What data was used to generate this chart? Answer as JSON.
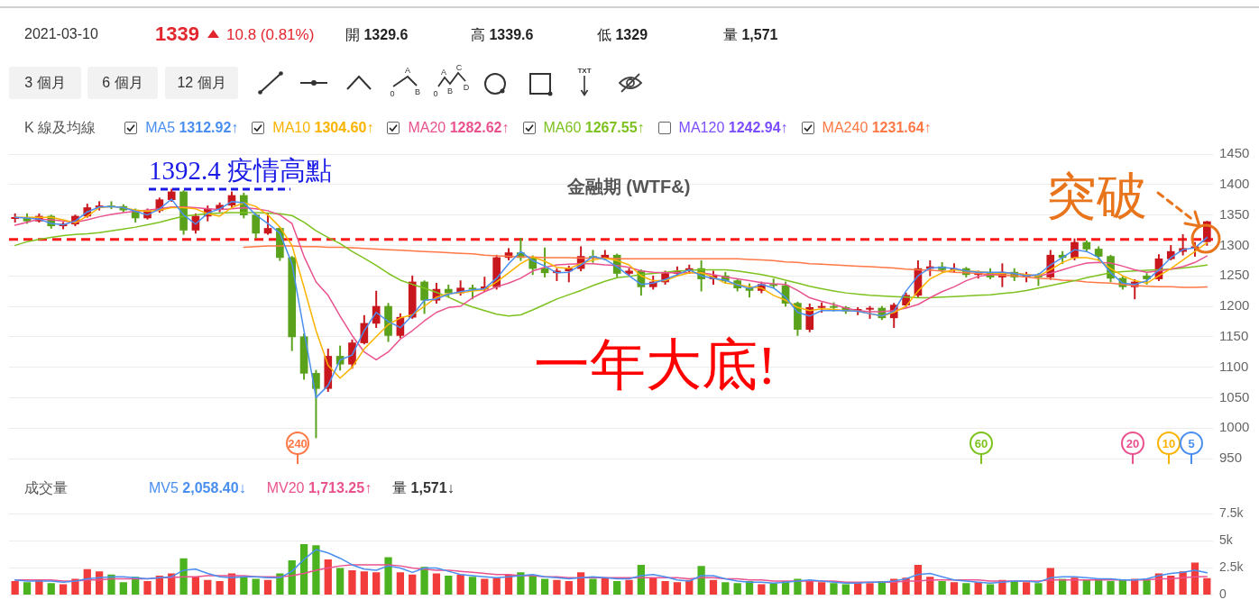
{
  "chart_data": [
    {
      "type": "candlestick",
      "title": "金融期 (WTF&)",
      "categories": [
        null,
        null,
        null,
        null,
        null,
        null,
        null,
        null,
        null,
        null,
        null,
        null,
        null,
        null,
        null,
        null,
        null,
        null,
        null,
        null,
        null,
        null,
        null,
        null,
        null,
        null,
        null,
        null,
        null,
        null,
        null,
        null,
        null,
        null,
        null,
        null,
        null,
        null,
        null,
        null,
        null,
        null,
        null,
        null,
        null,
        null,
        null,
        null,
        null,
        null,
        null,
        null,
        null,
        null,
        null,
        null,
        null,
        null,
        null,
        null,
        null,
        null,
        null,
        null,
        null,
        null,
        null,
        null,
        null,
        null,
        null,
        null,
        null,
        null,
        null,
        null,
        null,
        null,
        null,
        null,
        null,
        null,
        null,
        null,
        null,
        null,
        null,
        null,
        null,
        null,
        null,
        null,
        null,
        null,
        null,
        null,
        null,
        null,
        null,
        null
      ],
      "ohlc": [
        [
          1344,
          1352,
          1338,
          1346
        ],
        [
          1346,
          1352,
          1336,
          1340
        ],
        [
          1340,
          1352,
          1338,
          1348
        ],
        [
          1348,
          1350,
          1328,
          1332
        ],
        [
          1332,
          1338,
          1327,
          1335
        ],
        [
          1335,
          1350,
          1332,
          1348
        ],
        [
          1348,
          1368,
          1346,
          1362
        ],
        [
          1362,
          1372,
          1358,
          1365
        ],
        [
          1365,
          1372,
          1360,
          1364
        ],
        [
          1364,
          1367,
          1355,
          1358
        ],
        [
          1358,
          1360,
          1338,
          1345
        ],
        [
          1345,
          1360,
          1343,
          1357
        ],
        [
          1357,
          1378,
          1354,
          1375
        ],
        [
          1375,
          1392.4,
          1372,
          1388
        ],
        [
          1388,
          1390,
          1318,
          1325
        ],
        [
          1325,
          1352,
          1320,
          1348
        ],
        [
          1348,
          1365,
          1340,
          1360
        ],
        [
          1360,
          1370,
          1355,
          1366
        ],
        [
          1366,
          1388,
          1362,
          1382
        ],
        [
          1382,
          1386,
          1345,
          1350
        ],
        [
          1350,
          1352,
          1312,
          1320
        ],
        [
          1320,
          1352,
          1318,
          1328
        ],
        [
          1328,
          1330,
          1275,
          1280
        ],
        [
          1280,
          1282,
          1127,
          1150
        ],
        [
          1150,
          1155,
          1080,
          1090
        ],
        [
          1090,
          1095,
          984,
          1065
        ],
        [
          1065,
          1130,
          1060,
          1118
        ],
        [
          1118,
          1135,
          1095,
          1105
        ],
        [
          1105,
          1145,
          1098,
          1140
        ],
        [
          1140,
          1185,
          1138,
          1172
        ],
        [
          1172,
          1225,
          1165,
          1200
        ],
        [
          1200,
          1205,
          1142,
          1152
        ],
        [
          1152,
          1188,
          1148,
          1182
        ],
        [
          1182,
          1250,
          1180,
          1240
        ],
        [
          1240,
          1242,
          1188,
          1210
        ],
        [
          1210,
          1238,
          1205,
          1228
        ],
        [
          1228,
          1235,
          1215,
          1222
        ],
        [
          1222,
          1242,
          1218,
          1230
        ],
        [
          1230,
          1235,
          1212,
          1228
        ],
        [
          1228,
          1248,
          1224,
          1232
        ],
        [
          1232,
          1284,
          1228,
          1280
        ],
        [
          1280,
          1295,
          1276,
          1288
        ],
        [
          1288,
          1312,
          1275,
          1280
        ],
        [
          1280,
          1283,
          1252,
          1262
        ],
        [
          1262,
          1296,
          1248,
          1255
        ],
        [
          1255,
          1262,
          1242,
          1258
        ],
        [
          1258,
          1266,
          1240,
          1262
        ],
        [
          1262,
          1298,
          1258,
          1282
        ],
        [
          1282,
          1292,
          1272,
          1280
        ],
        [
          1280,
          1292,
          1276,
          1284
        ],
        [
          1284,
          1286,
          1248,
          1254
        ],
        [
          1254,
          1262,
          1250,
          1258
        ],
        [
          1258,
          1260,
          1218,
          1232
        ],
        [
          1232,
          1250,
          1228,
          1240
        ],
        [
          1240,
          1258,
          1236,
          1254
        ],
        [
          1254,
          1265,
          1250,
          1258
        ],
        [
          1258,
          1268,
          1254,
          1262
        ],
        [
          1262,
          1275,
          1225,
          1245
        ],
        [
          1245,
          1258,
          1236,
          1250
        ],
        [
          1250,
          1256,
          1238,
          1242
        ],
        [
          1242,
          1244,
          1225,
          1230
        ],
        [
          1230,
          1237,
          1215,
          1226
        ],
        [
          1226,
          1240,
          1222,
          1236
        ],
        [
          1236,
          1245,
          1230,
          1234
        ],
        [
          1234,
          1240,
          1200,
          1205
        ],
        [
          1205,
          1207,
          1152,
          1162
        ],
        [
          1162,
          1204,
          1158,
          1198
        ],
        [
          1198,
          1206,
          1190,
          1200
        ],
        [
          1200,
          1206,
          1192,
          1198
        ],
        [
          1198,
          1200,
          1188,
          1192
        ],
        [
          1192,
          1198,
          1186,
          1195
        ],
        [
          1195,
          1200,
          1180,
          1197
        ],
        [
          1197,
          1200,
          1178,
          1181
        ],
        [
          1181,
          1205,
          1165,
          1202
        ],
        [
          1202,
          1222,
          1198,
          1218
        ],
        [
          1218,
          1275,
          1215,
          1262
        ],
        [
          1262,
          1275,
          1250,
          1265
        ],
        [
          1265,
          1272,
          1256,
          1260
        ],
        [
          1260,
          1270,
          1256,
          1262
        ],
        [
          1262,
          1264,
          1248,
          1252
        ],
        [
          1252,
          1258,
          1246,
          1255
        ],
        [
          1255,
          1262,
          1245,
          1248
        ],
        [
          1248,
          1270,
          1232,
          1256
        ],
        [
          1256,
          1262,
          1242,
          1248
        ],
        [
          1248,
          1256,
          1240,
          1250
        ],
        [
          1250,
          1254,
          1234,
          1248
        ],
        [
          1248,
          1292,
          1244,
          1284
        ],
        [
          1284,
          1290,
          1270,
          1280
        ],
        [
          1280,
          1311,
          1276,
          1305
        ],
        [
          1305,
          1308,
          1290,
          1294
        ],
        [
          1294,
          1298,
          1275,
          1282
        ],
        [
          1282,
          1284,
          1240,
          1246
        ],
        [
          1246,
          1250,
          1228,
          1232
        ],
        [
          1232,
          1244,
          1212,
          1240
        ],
        [
          1250,
          1254,
          1236,
          1245
        ],
        [
          1245,
          1285,
          1242,
          1278
        ],
        [
          1278,
          1300,
          1276,
          1290
        ],
        [
          1290,
          1318,
          1284,
          1295
        ],
        [
          1295,
          1305,
          1282,
          1298
        ],
        [
          1306,
          1339.6,
          1300,
          1339
        ]
      ],
      "colors": [
        "#c9171e",
        "#5aa21b",
        "#c9171e",
        "#5aa21b",
        "#c9171e",
        "#c9171e",
        "#c9171e",
        "#c9171e",
        "#5aa21b",
        "#5aa21b",
        "#5aa21b",
        "#c9171e",
        "#c9171e",
        "#c9171e",
        "#5aa21b",
        "#c9171e",
        "#c9171e",
        "#c9171e",
        "#c9171e",
        "#5aa21b",
        "#5aa21b",
        "#c9171e",
        "#5aa21b",
        "#5aa21b",
        "#5aa21b",
        "#5aa21b",
        "#c9171e",
        "#5aa21b",
        "#c9171e",
        "#c9171e",
        "#c9171e",
        "#5aa21b",
        "#c9171e",
        "#c9171e",
        "#5aa21b",
        "#c9171e",
        "#5aa21b",
        "#c9171e",
        "#5aa21b",
        "#c9171e",
        "#c9171e",
        "#c9171e",
        "#5aa21b",
        "#5aa21b",
        "#5aa21b",
        "#c9171e",
        "#c9171e",
        "#c9171e",
        "#5aa21b",
        "#c9171e",
        "#5aa21b",
        "#c9171e",
        "#5aa21b",
        "#c9171e",
        "#c9171e",
        "#c9171e",
        "#c9171e",
        "#5aa21b",
        "#c9171e",
        "#5aa21b",
        "#5aa21b",
        "#5aa21b",
        "#c9171e",
        "#5aa21b",
        "#5aa21b",
        "#5aa21b",
        "#c9171e",
        "#c9171e",
        "#5aa21b",
        "#5aa21b",
        "#c9171e",
        "#c9171e",
        "#5aa21b",
        "#c9171e",
        "#c9171e",
        "#c9171e",
        "#c9171e",
        "#5aa21b",
        "#c9171e",
        "#5aa21b",
        "#c9171e",
        "#5aa21b",
        "#c9171e",
        "#5aa21b",
        "#c9171e",
        "#5aa21b",
        "#c9171e",
        "#5aa21b",
        "#c9171e",
        "#5aa21b",
        "#5aa21b",
        "#5aa21b",
        "#5aa21b",
        "#c9171e",
        "#5aa21b",
        "#c9171e",
        "#c9171e",
        "#c9171e",
        "#c9171e",
        "#c9171e"
      ],
      "series": [
        {
          "name": "MA5 1312.92↑",
          "type": "line",
          "color": "#4a8ff0",
          "values": [
            1346,
            1345,
            1343,
            1336,
            1334,
            1340,
            1355,
            1363,
            1364,
            1362,
            1356,
            1350,
            1360,
            1376,
            1350,
            1335,
            1353,
            1360,
            1372,
            1370,
            1350,
            1336,
            1320,
            1270,
            1160,
            1050,
            1070,
            1112,
            1120,
            1160,
            1190,
            1175,
            1165,
            1185,
            1210,
            1212,
            1220,
            1224,
            1227,
            1229,
            1246,
            1270,
            1290,
            1275,
            1266,
            1255,
            1256,
            1268,
            1282,
            1277,
            1265,
            1250,
            1236,
            1238,
            1244,
            1252,
            1260,
            1250,
            1246,
            1243,
            1235,
            1229,
            1236,
            1230,
            1215,
            1190,
            1184,
            1193,
            1193,
            1193,
            1192,
            1188,
            1184,
            1192,
            1225,
            1250,
            1263,
            1264,
            1262,
            1258,
            1256,
            1256,
            1256,
            1254,
            1250,
            1252,
            1268,
            1280,
            1293,
            1290,
            1280,
            1255,
            1238,
            1236,
            1242,
            1260,
            1280,
            1293,
            1296,
            1312.92
          ]
        },
        {
          "name": "MA10 1304.60↑",
          "type": "line",
          "color": "#fbb300",
          "values": [
            1346,
            1346,
            1346,
            1346,
            1342,
            1337,
            1348,
            1362,
            1364,
            1362,
            1358,
            1356,
            1358,
            1362,
            1362,
            1360,
            1352,
            1348,
            1362,
            1370,
            1364,
            1350,
            1330,
            1300,
            1231,
            1160,
            1103,
            1082,
            1100,
            1130,
            1150,
            1170,
            1181,
            1186,
            1200,
            1215,
            1221,
            1222,
            1225,
            1227,
            1240,
            1255,
            1270,
            1281,
            1274,
            1264,
            1262,
            1270,
            1276,
            1279,
            1275,
            1268,
            1250,
            1242,
            1242,
            1250,
            1255,
            1255,
            1248,
            1238,
            1236,
            1232,
            1230,
            1218,
            1210,
            1198,
            1193,
            1196,
            1195,
            1193,
            1192,
            1188,
            1184,
            1190,
            1200,
            1225,
            1245,
            1255,
            1260,
            1258,
            1257,
            1255,
            1254,
            1254,
            1252,
            1250,
            1260,
            1272,
            1280,
            1280,
            1276,
            1262,
            1250,
            1242,
            1238,
            1250,
            1262,
            1276,
            1290,
            1304.6
          ]
        },
        {
          "name": "MA20 1282.62↑",
          "type": "line",
          "color": "#e9528e",
          "values": [
            1333,
            1338,
            1343,
            1342,
            1340,
            1338,
            1342,
            1347,
            1351,
            1354,
            1356,
            1358,
            1360,
            1363,
            1363,
            1362,
            1360,
            1359,
            1360,
            1362,
            1360,
            1357,
            1350,
            1336,
            1282,
            1240,
            1218,
            1184,
            1152,
            1125,
            1112,
            1125,
            1146,
            1160,
            1176,
            1190,
            1198,
            1200,
            1214,
            1224,
            1232,
            1238,
            1246,
            1258,
            1264,
            1268,
            1269,
            1270,
            1270,
            1268,
            1267,
            1264,
            1258,
            1256,
            1255,
            1255,
            1255,
            1255,
            1252,
            1248,
            1245,
            1242,
            1239,
            1237,
            1236,
            1226,
            1214,
            1208,
            1203,
            1197,
            1193,
            1191,
            1191,
            1193,
            1197,
            1203,
            1214,
            1224,
            1232,
            1242,
            1249,
            1252,
            1254,
            1254,
            1252,
            1250,
            1254,
            1260,
            1266,
            1271,
            1272,
            1271,
            1266,
            1260,
            1256,
            1258,
            1261,
            1265,
            1272,
            1282.62
          ]
        },
        {
          "name": "MA60 1267.55↑",
          "type": "line",
          "color": "#7dc21e",
          "values": [
            1300,
            1306,
            1310,
            1313,
            1316,
            1318,
            1319,
            1321,
            1324,
            1327,
            1330,
            1334,
            1338,
            1343,
            1348,
            1350,
            1352,
            1353,
            1354,
            1354,
            1354,
            1353,
            1352,
            1349,
            1338,
            1324,
            1313,
            1303,
            1290,
            1279,
            1267,
            1254,
            1243,
            1236,
            1230,
            1223,
            1215,
            1206,
            1199,
            1193,
            1187,
            1184,
            1186,
            1194,
            1203,
            1212,
            1219,
            1226,
            1234,
            1241,
            1247,
            1249,
            1252,
            1254,
            1256,
            1258,
            1259,
            1260,
            1260,
            1260,
            1258,
            1255,
            1252,
            1248,
            1243,
            1238,
            1233,
            1229,
            1225,
            1222,
            1220,
            1218,
            1217,
            1216,
            1215,
            1214,
            1214,
            1215,
            1216,
            1217,
            1218,
            1219,
            1221,
            1223,
            1226,
            1230,
            1234,
            1238,
            1242,
            1247,
            1251,
            1255,
            1257,
            1258,
            1259,
            1260,
            1261,
            1263,
            1265,
            1267.55
          ]
        },
        {
          "name": "MA240 1231.64↑",
          "type": "line",
          "color": "#ff7846",
          "values": [
            null,
            null,
            null,
            null,
            null,
            null,
            null,
            null,
            null,
            null,
            null,
            null,
            null,
            null,
            null,
            null,
            null,
            null,
            null,
            1297,
            1298,
            1299,
            1299,
            1299,
            1298,
            1298,
            1297,
            1297,
            1296,
            1295,
            1294,
            1293,
            1292,
            1291,
            1290,
            1289,
            1288,
            1287,
            1286,
            1284,
            1283,
            1282,
            1281,
            1281,
            1280,
            1280,
            1280,
            1279,
            1279,
            1279,
            1278,
            1278,
            1278,
            1278,
            1278,
            1278,
            1278,
            1278,
            1278,
            1278,
            1278,
            1277,
            1276,
            1275,
            1273,
            1272,
            1270,
            1269,
            1268,
            1267,
            1266,
            1265,
            1264,
            1263,
            1261,
            1260,
            1259,
            1258,
            1256,
            1255,
            1254,
            1252,
            1251,
            1250,
            1248,
            1246,
            1245,
            1243,
            1242,
            1240,
            1239,
            1238,
            1236,
            1234,
            1233,
            1232,
            1232,
            1231,
            1231,
            1231.64
          ]
        }
      ],
      "ylim": [
        950,
        1450
      ],
      "yticks": [
        950,
        1000,
        1050,
        1100,
        1150,
        1200,
        1250,
        1300,
        1350,
        1400,
        1450
      ],
      "grid": "y",
      "legend": "top left",
      "legend_title": "K 線及均線",
      "ref_lines": [
        {
          "axis": "y",
          "value": 1310,
          "color": "#ff1a1a",
          "line_style": "dashed"
        }
      ],
      "annotations": [
        "2021-03-10",
        "1339",
        "10.8 (0.81%)",
        "開 1329.6",
        "高 1339.6",
        "低 1329",
        "量 1,571",
        "3 個月",
        "6 個月",
        "12 個月",
        "A",
        "0",
        "B",
        "A",
        "C",
        "0",
        "B",
        "D",
        "TXT",
        "MA120 1242.94↑",
        {
          "text": "1392.4 疫情高點",
          "y": 1392.4
        },
        "一年大底!",
        "突破",
        "240",
        "60",
        "20",
        "10",
        "5"
      ]
    },
    {
      "type": "bar",
      "legend": "top left",
      "legend_title": "成交量",
      "categories": [
        null,
        null,
        null,
        null,
        null,
        null,
        null,
        null,
        null,
        null,
        null,
        null,
        null,
        null,
        null,
        null,
        null,
        null,
        null,
        null,
        null,
        null,
        null,
        null,
        null,
        null,
        null,
        null,
        null,
        null,
        null,
        null,
        null,
        null,
        null,
        null,
        null,
        null,
        null,
        null,
        null,
        null,
        null,
        null,
        null,
        null,
        null,
        null,
        null,
        null,
        null,
        null,
        null,
        null,
        null,
        null,
        null,
        null,
        null,
        null,
        null,
        null,
        null,
        null,
        null,
        null,
        null,
        null,
        null,
        null,
        null,
        null,
        null,
        null,
        null,
        null,
        null,
        null,
        null,
        null,
        null,
        null,
        null,
        null,
        null,
        null,
        null,
        null,
        null,
        null,
        null,
        null,
        null,
        null,
        null,
        null,
        null,
        null,
        null,
        null
      ],
      "series": [
        {
          "name": "MV5 2,058.40↓",
          "type": "line",
          "color": "#4a8ff0",
          "values": [
            1400,
            1300,
            1300,
            1300,
            1200,
            1300,
            1500,
            1600,
            1700,
            1700,
            1600,
            1500,
            1600,
            1700,
            2300,
            2400,
            2000,
            1700,
            1600,
            1700,
            1700,
            1600,
            1600,
            2200,
            3300,
            4200,
            3900,
            3400,
            2800,
            2400,
            2300,
            2700,
            2500,
            2100,
            2500,
            2500,
            2200,
            1900,
            1800,
            1700,
            1600,
            1700,
            1800,
            1900,
            1700,
            1600,
            1500,
            1600,
            1700,
            1600,
            1500,
            1500,
            1800,
            1900,
            1700,
            1400,
            1300,
            1800,
            1800,
            1500,
            1300,
            1200,
            1200,
            1100,
            1200,
            1300,
            1400,
            1300,
            1200,
            1100,
            1100,
            1200,
            1200,
            1300,
            1500,
            1900,
            2000,
            1700,
            1400,
            1300,
            1200,
            1100,
            1200,
            1300,
            1300,
            1200,
            1600,
            1700,
            1700,
            1600,
            1500,
            1500,
            1400,
            1400,
            1500,
            1800,
            2000,
            2100,
            2300,
            2058.4
          ]
        },
        {
          "name": "MV20 1,713.25↑",
          "type": "line",
          "color": "#e9528e",
          "values": [
            1400,
            1400,
            1400,
            1400,
            1300,
            1300,
            1400,
            1400,
            1500,
            1500,
            1500,
            1500,
            1600,
            1600,
            1700,
            1700,
            1800,
            1800,
            1800,
            1800,
            1700,
            1700,
            1700,
            1800,
            2000,
            2300,
            2500,
            2700,
            2800,
            2800,
            2800,
            2800,
            2700,
            2500,
            2400,
            2300,
            2300,
            2200,
            2100,
            2000,
            1900,
            1900,
            1800,
            1800,
            1700,
            1700,
            1600,
            1600,
            1600,
            1600,
            1600,
            1600,
            1600,
            1600,
            1600,
            1600,
            1500,
            1600,
            1600,
            1500,
            1500,
            1400,
            1400,
            1300,
            1300,
            1300,
            1300,
            1300,
            1300,
            1200,
            1200,
            1200,
            1200,
            1200,
            1300,
            1300,
            1400,
            1400,
            1400,
            1400,
            1400,
            1300,
            1300,
            1300,
            1300,
            1300,
            1400,
            1400,
            1400,
            1400,
            1400,
            1400,
            1400,
            1400,
            1400,
            1500,
            1500,
            1600,
            1700,
            1713.25
          ]
        },
        {
          "values": [
            1300,
            1200,
            1400,
            1100,
            1000,
            1500,
            2400,
            2200,
            1900,
            1200,
            1700,
            1300,
            1800,
            2000,
            3400,
            1700,
            1400,
            1300,
            2000,
            1700,
            1500,
            1400,
            2000,
            3200,
            4700,
            4600,
            3300,
            2500,
            2300,
            2200,
            2100,
            3500,
            2100,
            1900,
            2600,
            2000,
            1800,
            1900,
            1700,
            1500,
            1600,
            1900,
            2100,
            1800,
            1500,
            1400,
            1300,
            2100,
            1500,
            1600,
            1300,
            1400,
            2800,
            1600,
            1300,
            1200,
            1400,
            2700,
            1400,
            1200,
            1100,
            1300,
            1000,
            1100,
            1300,
            1500,
            1300,
            1200,
            1100,
            1000,
            1200,
            1100,
            1300,
            1500,
            1600,
            2800,
            1700,
            1300,
            1200,
            1100,
            1200,
            1000,
            1400,
            1300,
            1200,
            1100,
            2500,
            1500,
            1600,
            1400,
            1500,
            1300,
            1400,
            1500,
            1500,
            2000,
            1800,
            2200,
            3000,
            1571
          ],
          "colors": [
            "#f23b3b",
            "#4bb31f",
            "#f23b3b",
            "#4bb31f",
            "#f23b3b",
            "#f23b3b",
            "#f23b3b",
            "#f23b3b",
            "#4bb31f",
            "#4bb31f",
            "#4bb31f",
            "#f23b3b",
            "#f23b3b",
            "#f23b3b",
            "#4bb31f",
            "#f23b3b",
            "#f23b3b",
            "#f23b3b",
            "#f23b3b",
            "#4bb31f",
            "#4bb31f",
            "#f23b3b",
            "#4bb31f",
            "#4bb31f",
            "#4bb31f",
            "#4bb31f",
            "#f23b3b",
            "#4bb31f",
            "#f23b3b",
            "#f23b3b",
            "#f23b3b",
            "#4bb31f",
            "#f23b3b",
            "#f23b3b",
            "#4bb31f",
            "#f23b3b",
            "#4bb31f",
            "#f23b3b",
            "#4bb31f",
            "#f23b3b",
            "#f23b3b",
            "#f23b3b",
            "#4bb31f",
            "#4bb31f",
            "#4bb31f",
            "#f23b3b",
            "#f23b3b",
            "#f23b3b",
            "#4bb31f",
            "#f23b3b",
            "#4bb31f",
            "#f23b3b",
            "#4bb31f",
            "#f23b3b",
            "#f23b3b",
            "#f23b3b",
            "#f23b3b",
            "#4bb31f",
            "#f23b3b",
            "#4bb31f",
            "#4bb31f",
            "#4bb31f",
            "#f23b3b",
            "#4bb31f",
            "#4bb31f",
            "#4bb31f",
            "#f23b3b",
            "#f23b3b",
            "#4bb31f",
            "#4bb31f",
            "#f23b3b",
            "#f23b3b",
            "#4bb31f",
            "#f23b3b",
            "#f23b3b",
            "#f23b3b",
            "#f23b3b",
            "#4bb31f",
            "#f23b3b",
            "#4bb31f",
            "#f23b3b",
            "#4bb31f",
            "#f23b3b",
            "#4bb31f",
            "#f23b3b",
            "#4bb31f",
            "#f23b3b",
            "#4bb31f",
            "#f23b3b",
            "#4bb31f",
            "#4bb31f",
            "#4bb31f",
            "#4bb31f",
            "#f23b3b",
            "#4bb31f",
            "#f23b3b",
            "#f23b3b",
            "#f23b3b",
            "#f23b3b",
            "#f23b3b"
          ]
        }
      ],
      "ylim": [
        0,
        7500
      ],
      "yticks": [
        0,
        {
          "value": 2500,
          "label": "2.5k"
        },
        {
          "value": 5000,
          "label": "5k"
        },
        {
          "value": 7500,
          "label": "7.5k"
        }
      ],
      "grid": "y",
      "annotations": [
        "量 1,571↓"
      ]
    }
  ]
}
